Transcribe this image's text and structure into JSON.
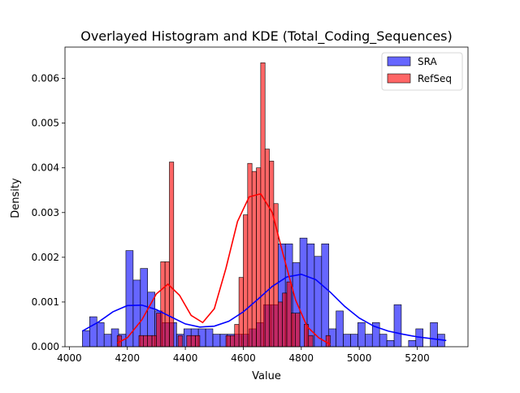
{
  "chart_data": {
    "type": "histogram",
    "title": "Overlayed Histogram and KDE (Total_Coding_Sequences)",
    "xlabel": "Value",
    "ylabel": "Density",
    "xlim": [
      3985,
      5375
    ],
    "ylim": [
      0,
      0.0067
    ],
    "xticks": [
      4000,
      4200,
      4400,
      4600,
      4800,
      5000,
      5200
    ],
    "yticks": [
      0.0,
      0.001,
      0.002,
      0.003,
      0.004,
      0.005,
      0.006
    ],
    "ytick_labels": [
      "0.000",
      "0.001",
      "0.002",
      "0.003",
      "0.004",
      "0.005",
      "0.006"
    ],
    "legend_position": "top-right",
    "series": [
      {
        "name": "SRA",
        "color": "#0000ff",
        "bin_edges": [
          4045,
          4070,
          4095,
          4120,
          4145,
          4170,
          4195,
          4220,
          4245,
          4270,
          4295,
          4320,
          4345,
          4370,
          4395,
          4420,
          4445,
          4470,
          4495,
          4520,
          4545,
          4570,
          4595,
          4620,
          4645,
          4670,
          4695,
          4720,
          4745,
          4770,
          4795,
          4820,
          4845,
          4870,
          4895,
          4920,
          4945,
          4970,
          4995,
          5020,
          5045,
          5070,
          5095,
          5120,
          5145,
          5170,
          5195,
          5220,
          5245,
          5270,
          5295,
          5320
        ],
        "values": [
          0.00036,
          0.00067,
          0.00054,
          0.00028,
          0.0004,
          0.00028,
          0.00215,
          0.00149,
          0.00175,
          0.00122,
          0.0008,
          0.00054,
          0.00054,
          0.00028,
          0.0004,
          0.0004,
          0.0004,
          0.0004,
          0.00028,
          0.00028,
          0.00028,
          0.00028,
          0.00028,
          0.0004,
          0.00054,
          0.00094,
          0.00094,
          0.0023,
          0.0023,
          0.00188,
          0.00243,
          0.0023,
          0.00202,
          0.0023,
          0.0004,
          0.0008,
          0.00028,
          0.00028,
          0.00054,
          0.00028,
          0.00054,
          0.00028,
          0.00014,
          0.00094,
          0.0,
          0.00014,
          0.0004,
          0.0,
          0.00054,
          0.00028,
          0.0
        ],
        "kde_x": [
          4045,
          4100,
          4150,
          4200,
          4250,
          4300,
          4350,
          4400,
          4450,
          4500,
          4550,
          4600,
          4650,
          4700,
          4750,
          4800,
          4850,
          4900,
          4950,
          5000,
          5050,
          5100,
          5150,
          5200,
          5250,
          5300
        ],
        "kde_y": [
          0.00035,
          0.00055,
          0.00078,
          0.00092,
          0.00093,
          0.00083,
          0.00067,
          0.00051,
          0.00044,
          0.00046,
          0.00057,
          0.00078,
          0.00106,
          0.00135,
          0.00156,
          0.00162,
          0.0015,
          0.00122,
          0.0009,
          0.00064,
          0.00046,
          0.00035,
          0.00028,
          0.00022,
          0.00018,
          0.00014
        ]
      },
      {
        "name": "RefSeq",
        "color": "#ff0000",
        "bin_edges": [
          4165,
          4180,
          4195,
          4210,
          4225,
          4240,
          4255,
          4270,
          4285,
          4300,
          4315,
          4330,
          4345,
          4360,
          4375,
          4390,
          4405,
          4420,
          4435,
          4450,
          4465,
          4480,
          4495,
          4510,
          4525,
          4540,
          4555,
          4570,
          4585,
          4600,
          4615,
          4630,
          4645,
          4660,
          4675,
          4690,
          4705,
          4720,
          4735,
          4750,
          4765,
          4780,
          4795,
          4810,
          4825,
          4840,
          4855,
          4870,
          4885,
          4900
        ],
        "values": [
          0.00025,
          0.0,
          0.0,
          0.0,
          0.0,
          0.00025,
          0.00025,
          0.00025,
          0.00025,
          0.00075,
          0.0019,
          0.0019,
          0.00413,
          0.0,
          0.00025,
          0.0,
          0.00025,
          0.00025,
          0.00025,
          0.0,
          0.0,
          0.0,
          0.0,
          0.0,
          0.0,
          0.00025,
          0.00025,
          0.0005,
          0.00155,
          0.00295,
          0.0041,
          0.00392,
          0.004,
          0.00635,
          0.00442,
          0.00415,
          0.0032,
          0.001,
          0.0012,
          0.00145,
          0.00075,
          0.00075,
          0.0,
          0.0005,
          0.00025,
          0.0,
          0.0,
          0.0,
          0.00025
        ],
        "kde_x": [
          4165,
          4200,
          4250,
          4300,
          4340,
          4380,
          4420,
          4460,
          4500,
          4540,
          4580,
          4620,
          4660,
          4700,
          4740,
          4780,
          4820,
          4860,
          4900
        ],
        "kde_y": [
          8e-05,
          0.0002,
          0.0006,
          0.00118,
          0.0014,
          0.00115,
          0.0007,
          0.00054,
          0.00085,
          0.00175,
          0.0028,
          0.00335,
          0.00342,
          0.003,
          0.002,
          0.00105,
          0.00045,
          0.0002,
          5e-05
        ]
      }
    ]
  }
}
